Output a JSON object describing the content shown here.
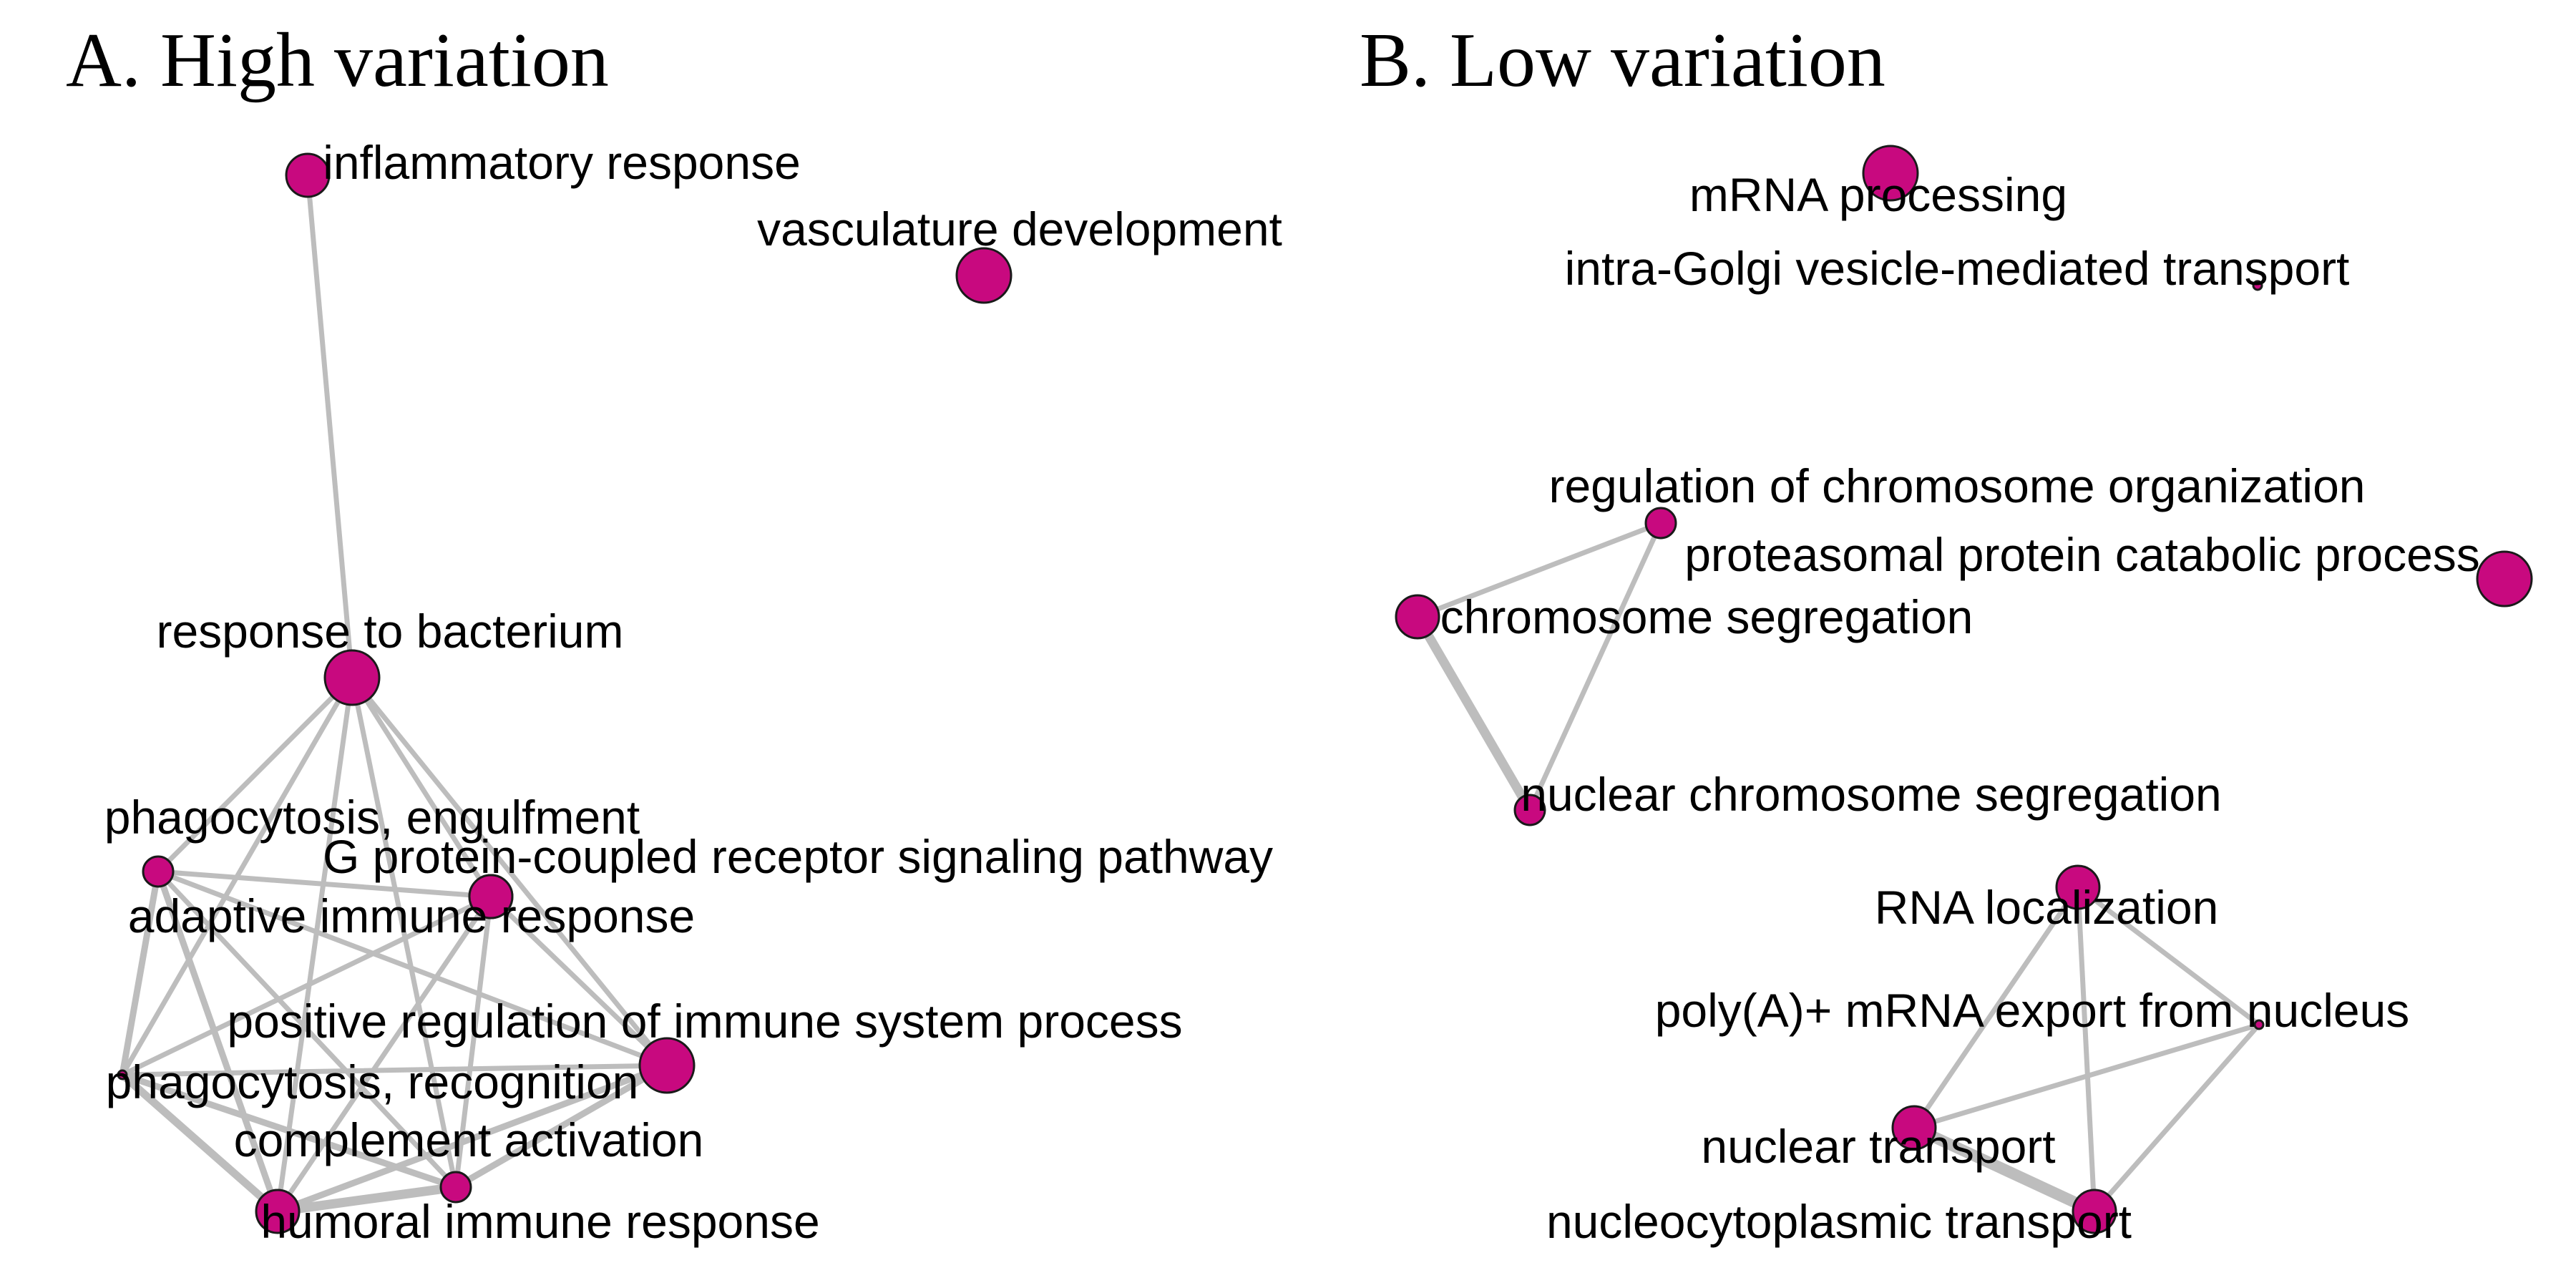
{
  "style": {
    "node_color": "#c8097f",
    "edge_color": "#bdbdbd",
    "node_outline": "#1a1a1a",
    "text_color": "#000000"
  },
  "panels": [
    {
      "id": "A",
      "title": "A. High variation",
      "nodes": [
        {
          "id": "inflammatory",
          "label": "inflammatory response",
          "size": 2
        },
        {
          "id": "vasculature",
          "label": "vasculature development",
          "size": 3
        },
        {
          "id": "bacterium",
          "label": "response to bacterium",
          "size": 3
        },
        {
          "id": "engulfment",
          "label": "phagocytosis, engulfment",
          "size": 1
        },
        {
          "id": "gpcr",
          "label": "G protein-coupled receptor signaling pathway",
          "size": 2
        },
        {
          "id": "adaptive",
          "label": "adaptive immune response",
          "size": 2
        },
        {
          "id": "posreg",
          "label": "positive regulation of immune system process",
          "size": 3
        },
        {
          "id": "recognition",
          "label": "phagocytosis, recognition",
          "size": 0
        },
        {
          "id": "complement",
          "label": "complement activation",
          "size": 1
        },
        {
          "id": "humoral",
          "label": "humoral immune response",
          "size": 2
        }
      ],
      "edges": [
        [
          "inflammatory",
          "bacterium",
          2
        ],
        [
          "bacterium",
          "engulfment",
          2
        ],
        [
          "bacterium",
          "adaptive",
          2
        ],
        [
          "bacterium",
          "posreg",
          2
        ],
        [
          "bacterium",
          "recognition",
          2
        ],
        [
          "bacterium",
          "complement",
          2
        ],
        [
          "bacterium",
          "humoral",
          2
        ],
        [
          "engulfment",
          "adaptive",
          2
        ],
        [
          "engulfment",
          "posreg",
          2
        ],
        [
          "engulfment",
          "recognition",
          3
        ],
        [
          "engulfment",
          "complement",
          2
        ],
        [
          "engulfment",
          "humoral",
          3
        ],
        [
          "adaptive",
          "posreg",
          2
        ],
        [
          "adaptive",
          "recognition",
          2
        ],
        [
          "adaptive",
          "complement",
          2
        ],
        [
          "adaptive",
          "humoral",
          2
        ],
        [
          "posreg",
          "recognition",
          2
        ],
        [
          "posreg",
          "complement",
          3
        ],
        [
          "posreg",
          "humoral",
          3
        ],
        [
          "recognition",
          "complement",
          3
        ],
        [
          "recognition",
          "humoral",
          4
        ],
        [
          "complement",
          "humoral",
          5
        ]
      ]
    },
    {
      "id": "B",
      "title": "B. Low variation",
      "nodes": [
        {
          "id": "mrna",
          "label": "mRNA processing",
          "size": 3
        },
        {
          "id": "golgi",
          "label": "intra-Golgi vesicle-mediated transport",
          "size": 0
        },
        {
          "id": "regchrom",
          "label": "regulation of chromosome organization",
          "size": 1
        },
        {
          "id": "proteasomal",
          "label": "proteasomal protein catabolic process",
          "size": 3
        },
        {
          "id": "segregation",
          "label": "chromosome segregation",
          "size": 2
        },
        {
          "id": "nuclearseg",
          "label": "nuclear chromosome segregation",
          "size": 1
        },
        {
          "id": "rnaloc",
          "label": "RNA localization",
          "size": 2
        },
        {
          "id": "polya",
          "label": "poly(A)+ mRNA export from nucleus",
          "size": 0
        },
        {
          "id": "nucltrans",
          "label": "nuclear transport",
          "size": 2
        },
        {
          "id": "nucleocyto",
          "label": "nucleocytoplasmic transport",
          "size": 2
        }
      ],
      "edges": [
        [
          "regchrom",
          "segregation",
          2
        ],
        [
          "regchrom",
          "nuclearseg",
          2
        ],
        [
          "segregation",
          "nuclearseg",
          5
        ],
        [
          "rnaloc",
          "nucltrans",
          2
        ],
        [
          "rnaloc",
          "polya",
          2
        ],
        [
          "rnaloc",
          "nucleocyto",
          2
        ],
        [
          "polya",
          "nucltrans",
          2
        ],
        [
          "polya",
          "nucleocyto",
          2
        ],
        [
          "nucltrans",
          "nucleocyto",
          6
        ]
      ]
    }
  ]
}
